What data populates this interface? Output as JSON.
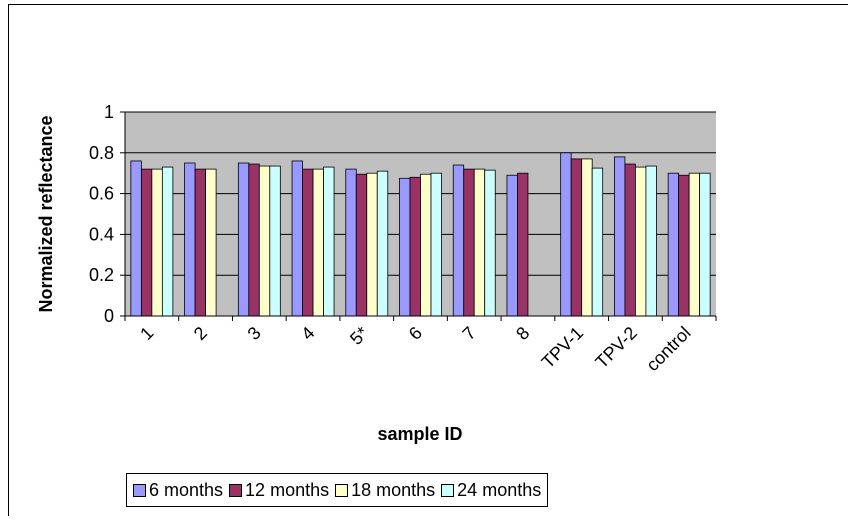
{
  "chart_data": {
    "type": "bar",
    "xlabel": "sample ID",
    "ylabel": "Normalized reflectance",
    "ylim": [
      0,
      1
    ],
    "yticks": [
      "0",
      "0.2",
      "0.4",
      "0.6",
      "0.8",
      "1"
    ],
    "grid": true,
    "legend_position": "bottom",
    "categories": [
      "1",
      "2",
      "3",
      "4",
      "5*",
      "6",
      "7",
      "8",
      "TPV-1",
      "TPV-2",
      "control"
    ],
    "series": [
      {
        "name": "6 months",
        "color": "#9999ff",
        "values": [
          0.76,
          0.75,
          0.75,
          0.76,
          0.72,
          0.675,
          0.74,
          0.69,
          0.8,
          0.78,
          0.7
        ]
      },
      {
        "name": "12 months",
        "color": "#993366",
        "values": [
          0.72,
          0.72,
          0.745,
          0.72,
          0.695,
          0.68,
          0.72,
          0.7,
          0.77,
          0.745,
          0.69
        ]
      },
      {
        "name": "18 months",
        "color": "#ffffcc",
        "values": [
          0.72,
          0.72,
          0.735,
          0.72,
          0.7,
          0.695,
          0.72,
          null,
          0.77,
          0.73,
          0.7
        ]
      },
      {
        "name": "24 months",
        "color": "#ccffff",
        "values": [
          0.73,
          null,
          0.735,
          0.73,
          0.71,
          0.7,
          0.715,
          null,
          0.725,
          0.735,
          0.7
        ]
      }
    ],
    "plot_background": "#c0c0c0"
  }
}
